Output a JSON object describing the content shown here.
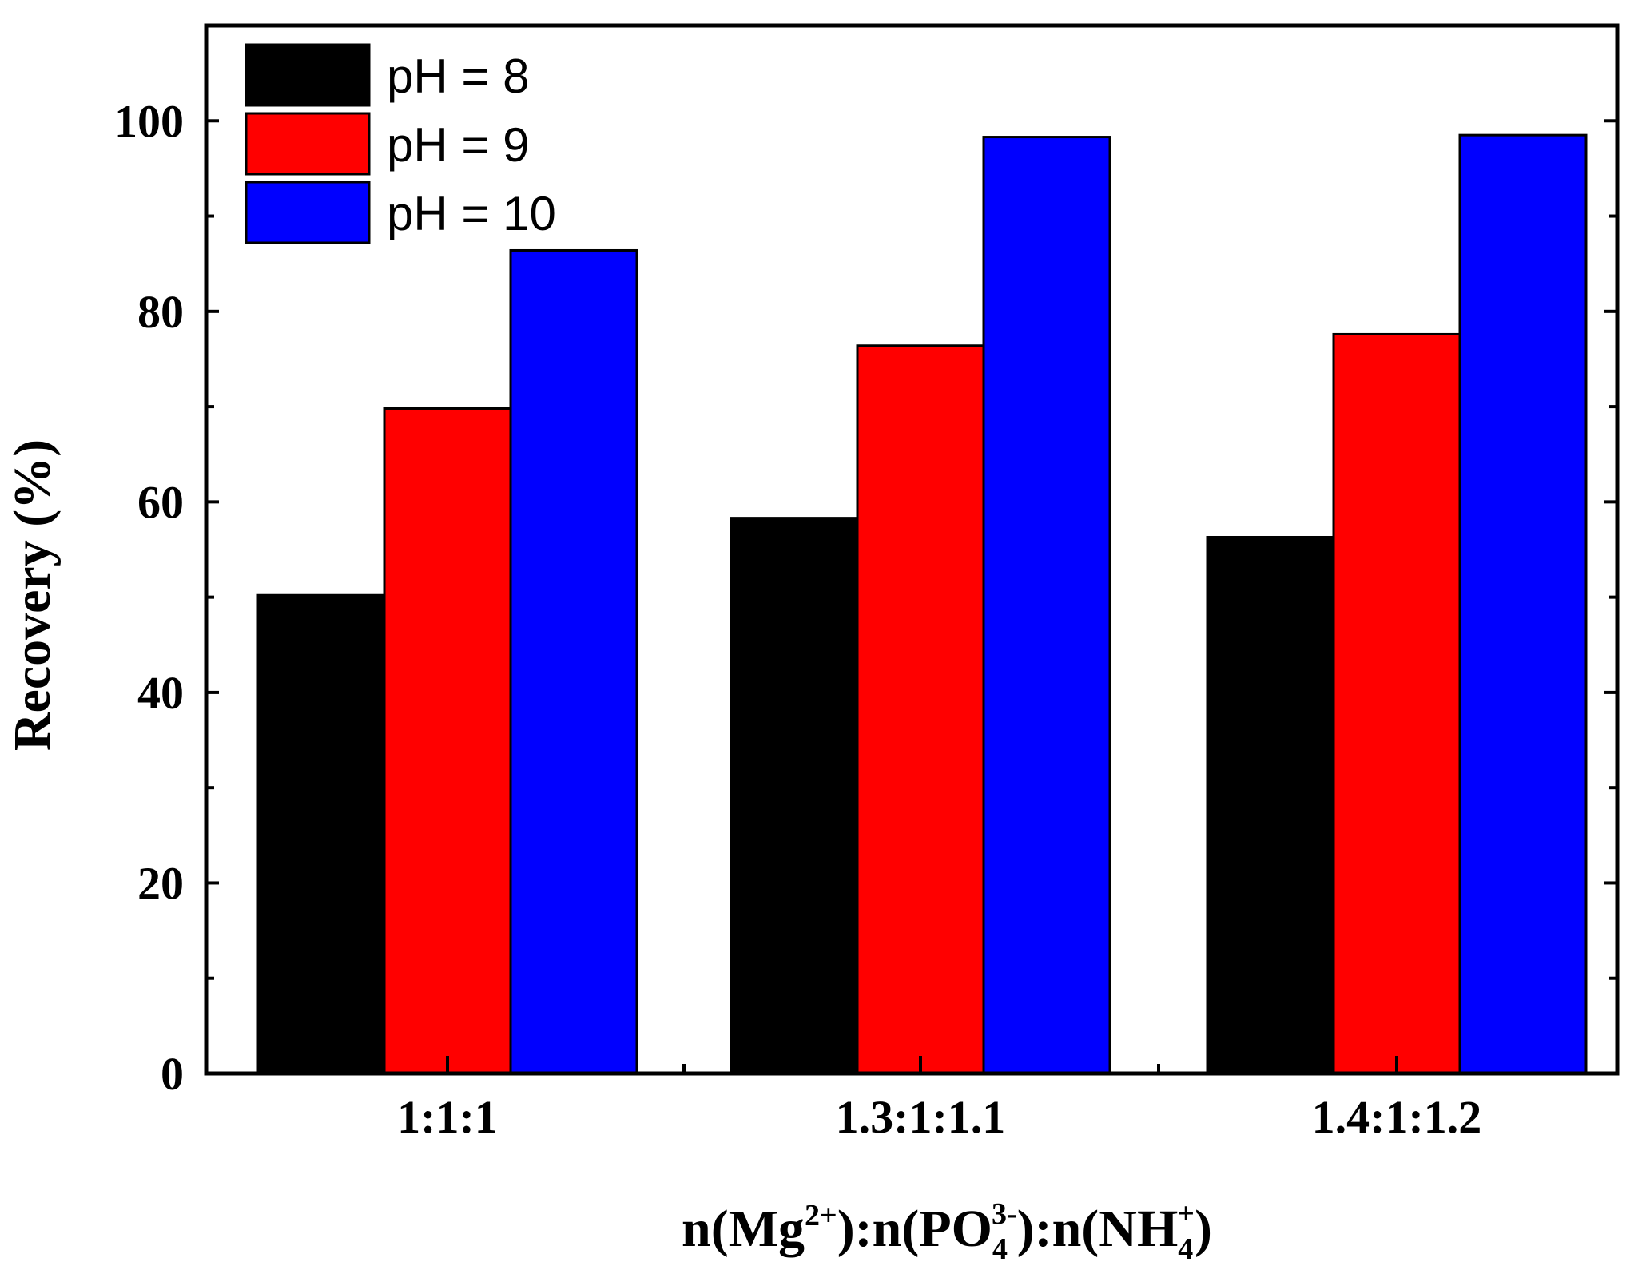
{
  "chart_data": {
    "type": "bar",
    "title": "",
    "categories": [
      "1:1:1",
      "1.3:1:1.1",
      "1.4:1:1.2"
    ],
    "series": [
      {
        "name": "pH = 8",
        "color": "#000000",
        "values": [
          50.2,
          58.3,
          56.3
        ]
      },
      {
        "name": "pH = 9",
        "color": "#ff0000",
        "values": [
          69.8,
          76.4,
          77.6
        ]
      },
      {
        "name": "pH = 10",
        "color": "#0000ff",
        "values": [
          86.4,
          98.3,
          98.5
        ]
      }
    ],
    "ylabel": "Recovery (%)",
    "xlabel": {
      "parts": [
        "n(Mg",
        "2+",
        "):n(PO",
        "4",
        "3-",
        "):n(NH",
        "4",
        "+",
        ")"
      ]
    },
    "ylim": [
      0,
      110
    ],
    "yticks": [
      0,
      20,
      40,
      60,
      80,
      100
    ],
    "legend_position": "top-left",
    "grid": false
  }
}
